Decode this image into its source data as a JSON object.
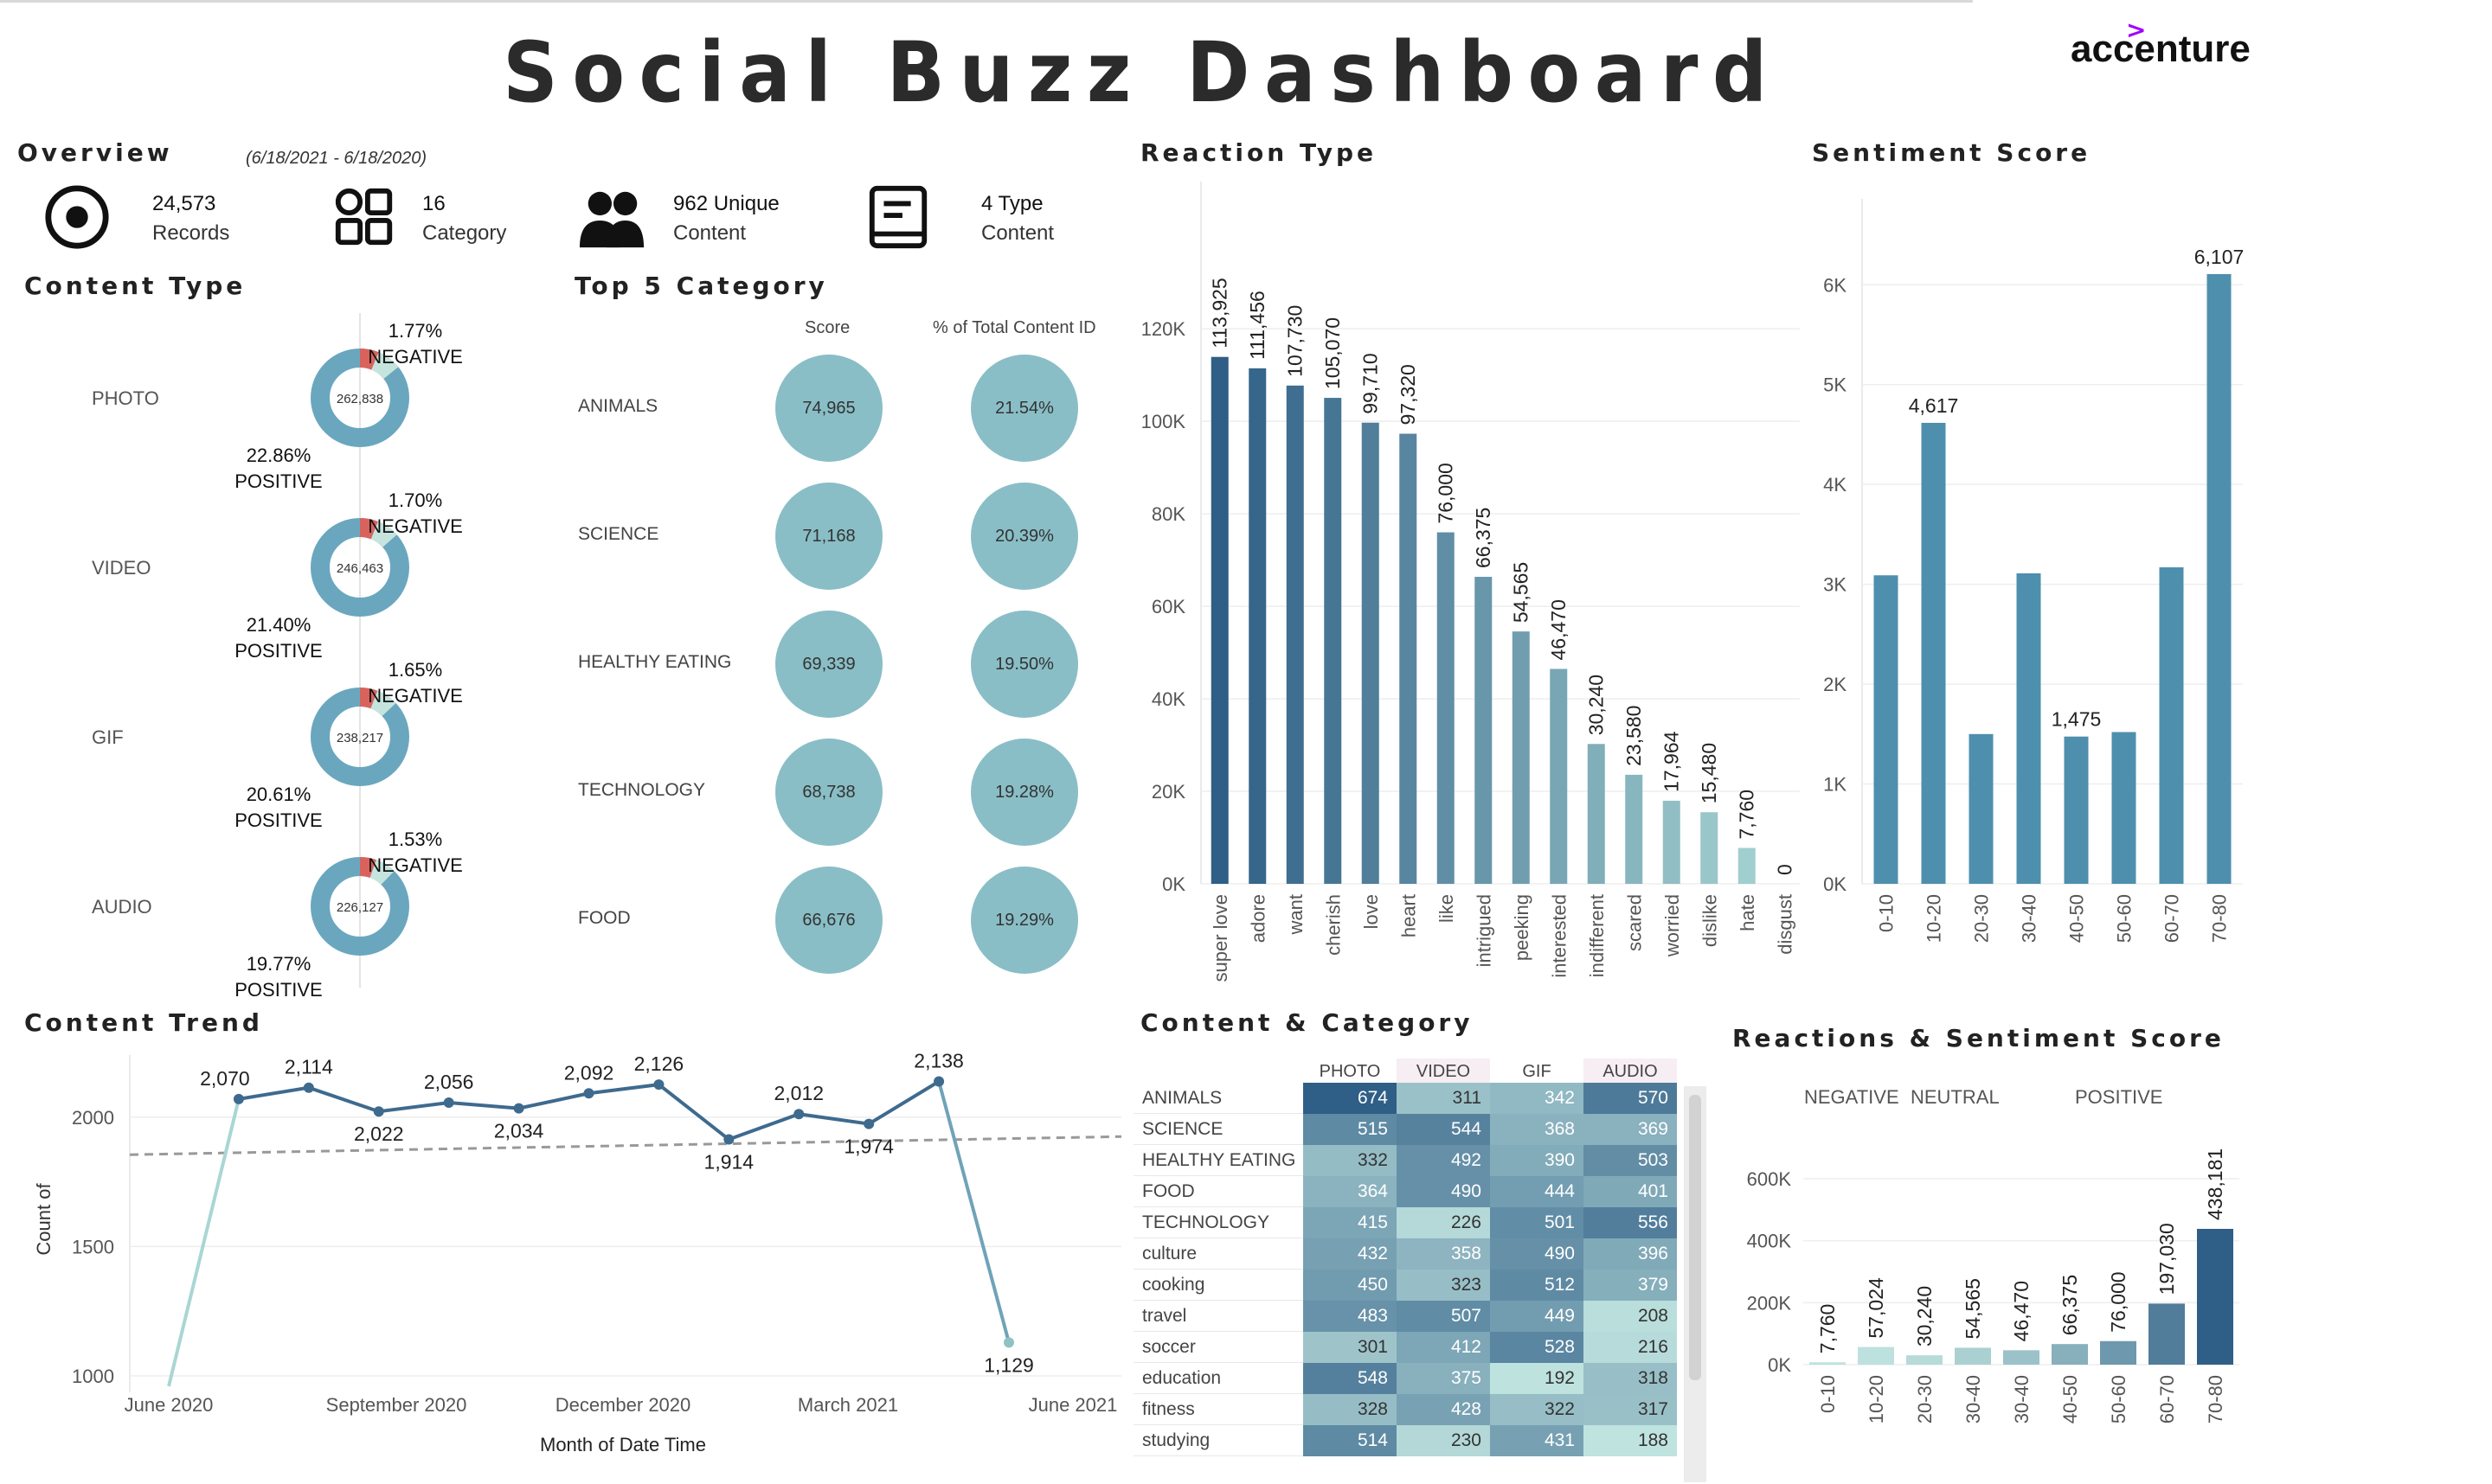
{
  "title": "Social Buzz Dashboard",
  "brand": "accenture",
  "overview": {
    "heading": "Overview",
    "date_range": "(6/18/2021 - 6/18/2020)",
    "kpis": [
      {
        "icon": "target-icon",
        "value": "24,573",
        "label": "Records"
      },
      {
        "icon": "grid-shapes-icon",
        "value": "16",
        "label": "Category"
      },
      {
        "icon": "users-icon",
        "value": "962",
        "label_inline": "Unique",
        "label": "Content"
      },
      {
        "icon": "document-icon",
        "value": "4",
        "label_inline": "Type",
        "label": "Content"
      }
    ]
  },
  "content_type": {
    "heading": "Content Type",
    "items": [
      {
        "name": "PHOTO",
        "total": "262,838",
        "negative_pct": "1.77%",
        "positive_pct": "22.86%",
        "neg": 0.0177,
        "pos": 0.2286
      },
      {
        "name": "VIDEO",
        "total": "246,463",
        "negative_pct": "1.70%",
        "positive_pct": "21.40%",
        "neg": 0.017,
        "pos": 0.214
      },
      {
        "name": "GIF",
        "total": "238,217",
        "negative_pct": "1.65%",
        "positive_pct": "20.61%",
        "neg": 0.0165,
        "pos": 0.2061
      },
      {
        "name": "AUDIO",
        "total": "226,127",
        "negative_pct": "1.53%",
        "positive_pct": "19.77%",
        "neg": 0.0153,
        "pos": 0.1977
      }
    ],
    "negative_label": "NEGATIVE",
    "positive_label": "POSITIVE",
    "colors": {
      "ring": "#6aa7bf",
      "negative": "#d9635c",
      "positive": "#c6e4de"
    }
  },
  "top5": {
    "heading": "Top 5 Category",
    "col_score": "Score",
    "col_pct": "% of Total Content ID",
    "rows": [
      {
        "name": "ANIMALS",
        "score": "74,965",
        "pct": "21.54%"
      },
      {
        "name": "SCIENCE",
        "score": "71,168",
        "pct": "20.39%"
      },
      {
        "name": "HEALTHY EATING",
        "score": "69,339",
        "pct": "19.50%"
      },
      {
        "name": "TECHNOLOGY",
        "score": "68,738",
        "pct": "19.28%"
      },
      {
        "name": "FOOD",
        "score": "66,676",
        "pct": "19.29%"
      }
    ]
  },
  "reaction_type": {
    "heading": "Reaction Type"
  },
  "sentiment_score": {
    "heading": "Sentiment Score"
  },
  "content_trend": {
    "heading": "Content Trend"
  },
  "content_category": {
    "heading": "Content & Category",
    "columns": [
      "PHOTO",
      "VIDEO",
      "GIF",
      "AUDIO"
    ],
    "rows": [
      {
        "name": "ANIMALS",
        "values": [
          674,
          311,
          342,
          570
        ]
      },
      {
        "name": "SCIENCE",
        "values": [
          515,
          544,
          368,
          369
        ]
      },
      {
        "name": "HEALTHY EATING",
        "values": [
          332,
          492,
          390,
          503
        ]
      },
      {
        "name": "FOOD",
        "values": [
          364,
          490,
          444,
          401
        ]
      },
      {
        "name": "TECHNOLOGY",
        "values": [
          415,
          226,
          501,
          556
        ]
      },
      {
        "name": "culture",
        "values": [
          432,
          358,
          490,
          396
        ]
      },
      {
        "name": "cooking",
        "values": [
          450,
          323,
          512,
          379
        ]
      },
      {
        "name": "travel",
        "values": [
          483,
          507,
          449,
          208
        ]
      },
      {
        "name": "soccer",
        "values": [
          301,
          412,
          528,
          216
        ]
      },
      {
        "name": "education",
        "values": [
          548,
          375,
          192,
          318
        ]
      },
      {
        "name": "fitness",
        "values": [
          328,
          428,
          322,
          317
        ]
      },
      {
        "name": "studying",
        "values": [
          514,
          230,
          431,
          188
        ]
      }
    ]
  },
  "reactions_sentiment": {
    "heading": "Reactions & Sentiment Score",
    "legend": [
      "NEGATIVE",
      "NEUTRAL",
      "POSITIVE"
    ]
  },
  "chart_data": [
    {
      "id": "reaction_type",
      "type": "bar",
      "categories": [
        "super love",
        "adore",
        "want",
        "cherish",
        "love",
        "heart",
        "like",
        "intrigued",
        "peeking",
        "interested",
        "indifferent",
        "scared",
        "worried",
        "dislike",
        "hate",
        "disgust"
      ],
      "values": [
        113925,
        111456,
        107730,
        105070,
        99710,
        97320,
        76000,
        66375,
        54565,
        46470,
        30240,
        23580,
        17964,
        15480,
        7760,
        0
      ],
      "value_labels": [
        "113,925",
        "111,456",
        "107,730",
        "105,070",
        "99,710",
        "97,320",
        "76,000",
        "66,375",
        "54,565",
        "46,470",
        "30,240",
        "23,580",
        "17,964",
        "15,480",
        "7,760",
        "0"
      ],
      "y_ticks": [
        "0K",
        "20K",
        "40K",
        "60K",
        "80K",
        "100K",
        "120K"
      ],
      "ylim": [
        0,
        135000
      ]
    },
    {
      "id": "sentiment_score",
      "type": "bar",
      "categories": [
        "0-10",
        "10-20",
        "20-30",
        "30-40",
        "40-50",
        "50-60",
        "60-70",
        "70-80"
      ],
      "values": [
        3090,
        4617,
        1500,
        3110,
        1475,
        1520,
        3170,
        6107
      ],
      "value_labels": [
        "",
        "4,617",
        "",
        "",
        "1,475",
        "",
        "",
        "6,107"
      ],
      "y_ticks": [
        "0K",
        "1K",
        "2K",
        "3K",
        "4K",
        "5K",
        "6K"
      ],
      "ylim": [
        0,
        6600
      ]
    },
    {
      "id": "content_trend",
      "type": "line",
      "x": [
        "2020-06",
        "2020-07",
        "2020-08",
        "2020-09",
        "2020-10",
        "2020-11",
        "2020-12",
        "2021-01",
        "2021-02",
        "2021-03",
        "2021-04",
        "2021-05",
        "2021-06"
      ],
      "values": [
        960,
        2070,
        2114,
        2022,
        2056,
        2034,
        2092,
        2126,
        1914,
        2012,
        1974,
        2138,
        1129
      ],
      "value_labels": [
        "",
        "2,070",
        "2,114",
        "2,022",
        "2,056",
        "2,034",
        "2,092",
        "2,126",
        "1,914",
        "2,012",
        "1,974",
        "2,138",
        "1,129"
      ],
      "x_ticks": [
        "June 2020",
        "September 2020",
        "December 2020",
        "March 2021",
        "June 2021"
      ],
      "y_ticks": [
        "1000",
        "1500",
        "2000"
      ],
      "ylabel": "Count of",
      "xlabel": "Month of Date Time",
      "trend_line": [
        1855,
        1925
      ],
      "ylim": [
        970,
        2240
      ]
    },
    {
      "id": "reactions_sentiment",
      "type": "bar",
      "categories": [
        "0-10",
        "10-20",
        "20-30",
        "30-40",
        "30-40",
        "40-50",
        "50-60",
        "60-70",
        "70-80"
      ],
      "values": [
        7760,
        57024,
        30240,
        54565,
        46470,
        66375,
        76000,
        197030,
        438181
      ],
      "value_labels": [
        "7,760",
        "57,024",
        "30,240",
        "54,565",
        "46,470",
        "66,375",
        "76,000",
        "197,030",
        "438,181"
      ],
      "y_ticks": [
        "0K",
        "200K",
        "400K",
        "600K"
      ],
      "ylim": [
        0,
        720000
      ]
    }
  ]
}
